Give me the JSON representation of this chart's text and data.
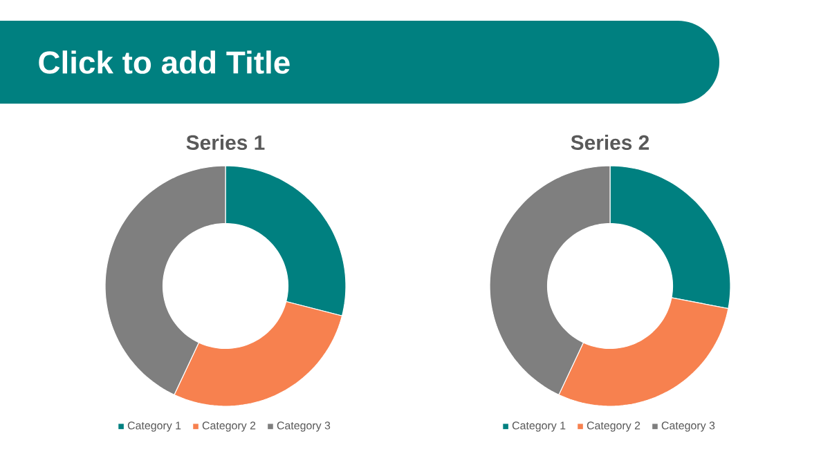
{
  "chart_data": [
    {
      "type": "other",
      "title": "Click to add Title"
    },
    {
      "type": "donut",
      "title": "Series 1",
      "categories": [
        "Category 1",
        "Category 2",
        "Category 3"
      ],
      "values": [
        29,
        28,
        43
      ],
      "colors": [
        "#008080",
        "#f7814f",
        "#7f7f7f"
      ],
      "legend": "bottom"
    },
    {
      "type": "donut",
      "title": "Series 2",
      "categories": [
        "Category 1",
        "Category 2",
        "Category 3"
      ],
      "values": [
        28,
        29,
        43
      ],
      "colors": [
        "#008080",
        "#f7814f",
        "#7f7f7f"
      ],
      "legend": "bottom"
    }
  ]
}
